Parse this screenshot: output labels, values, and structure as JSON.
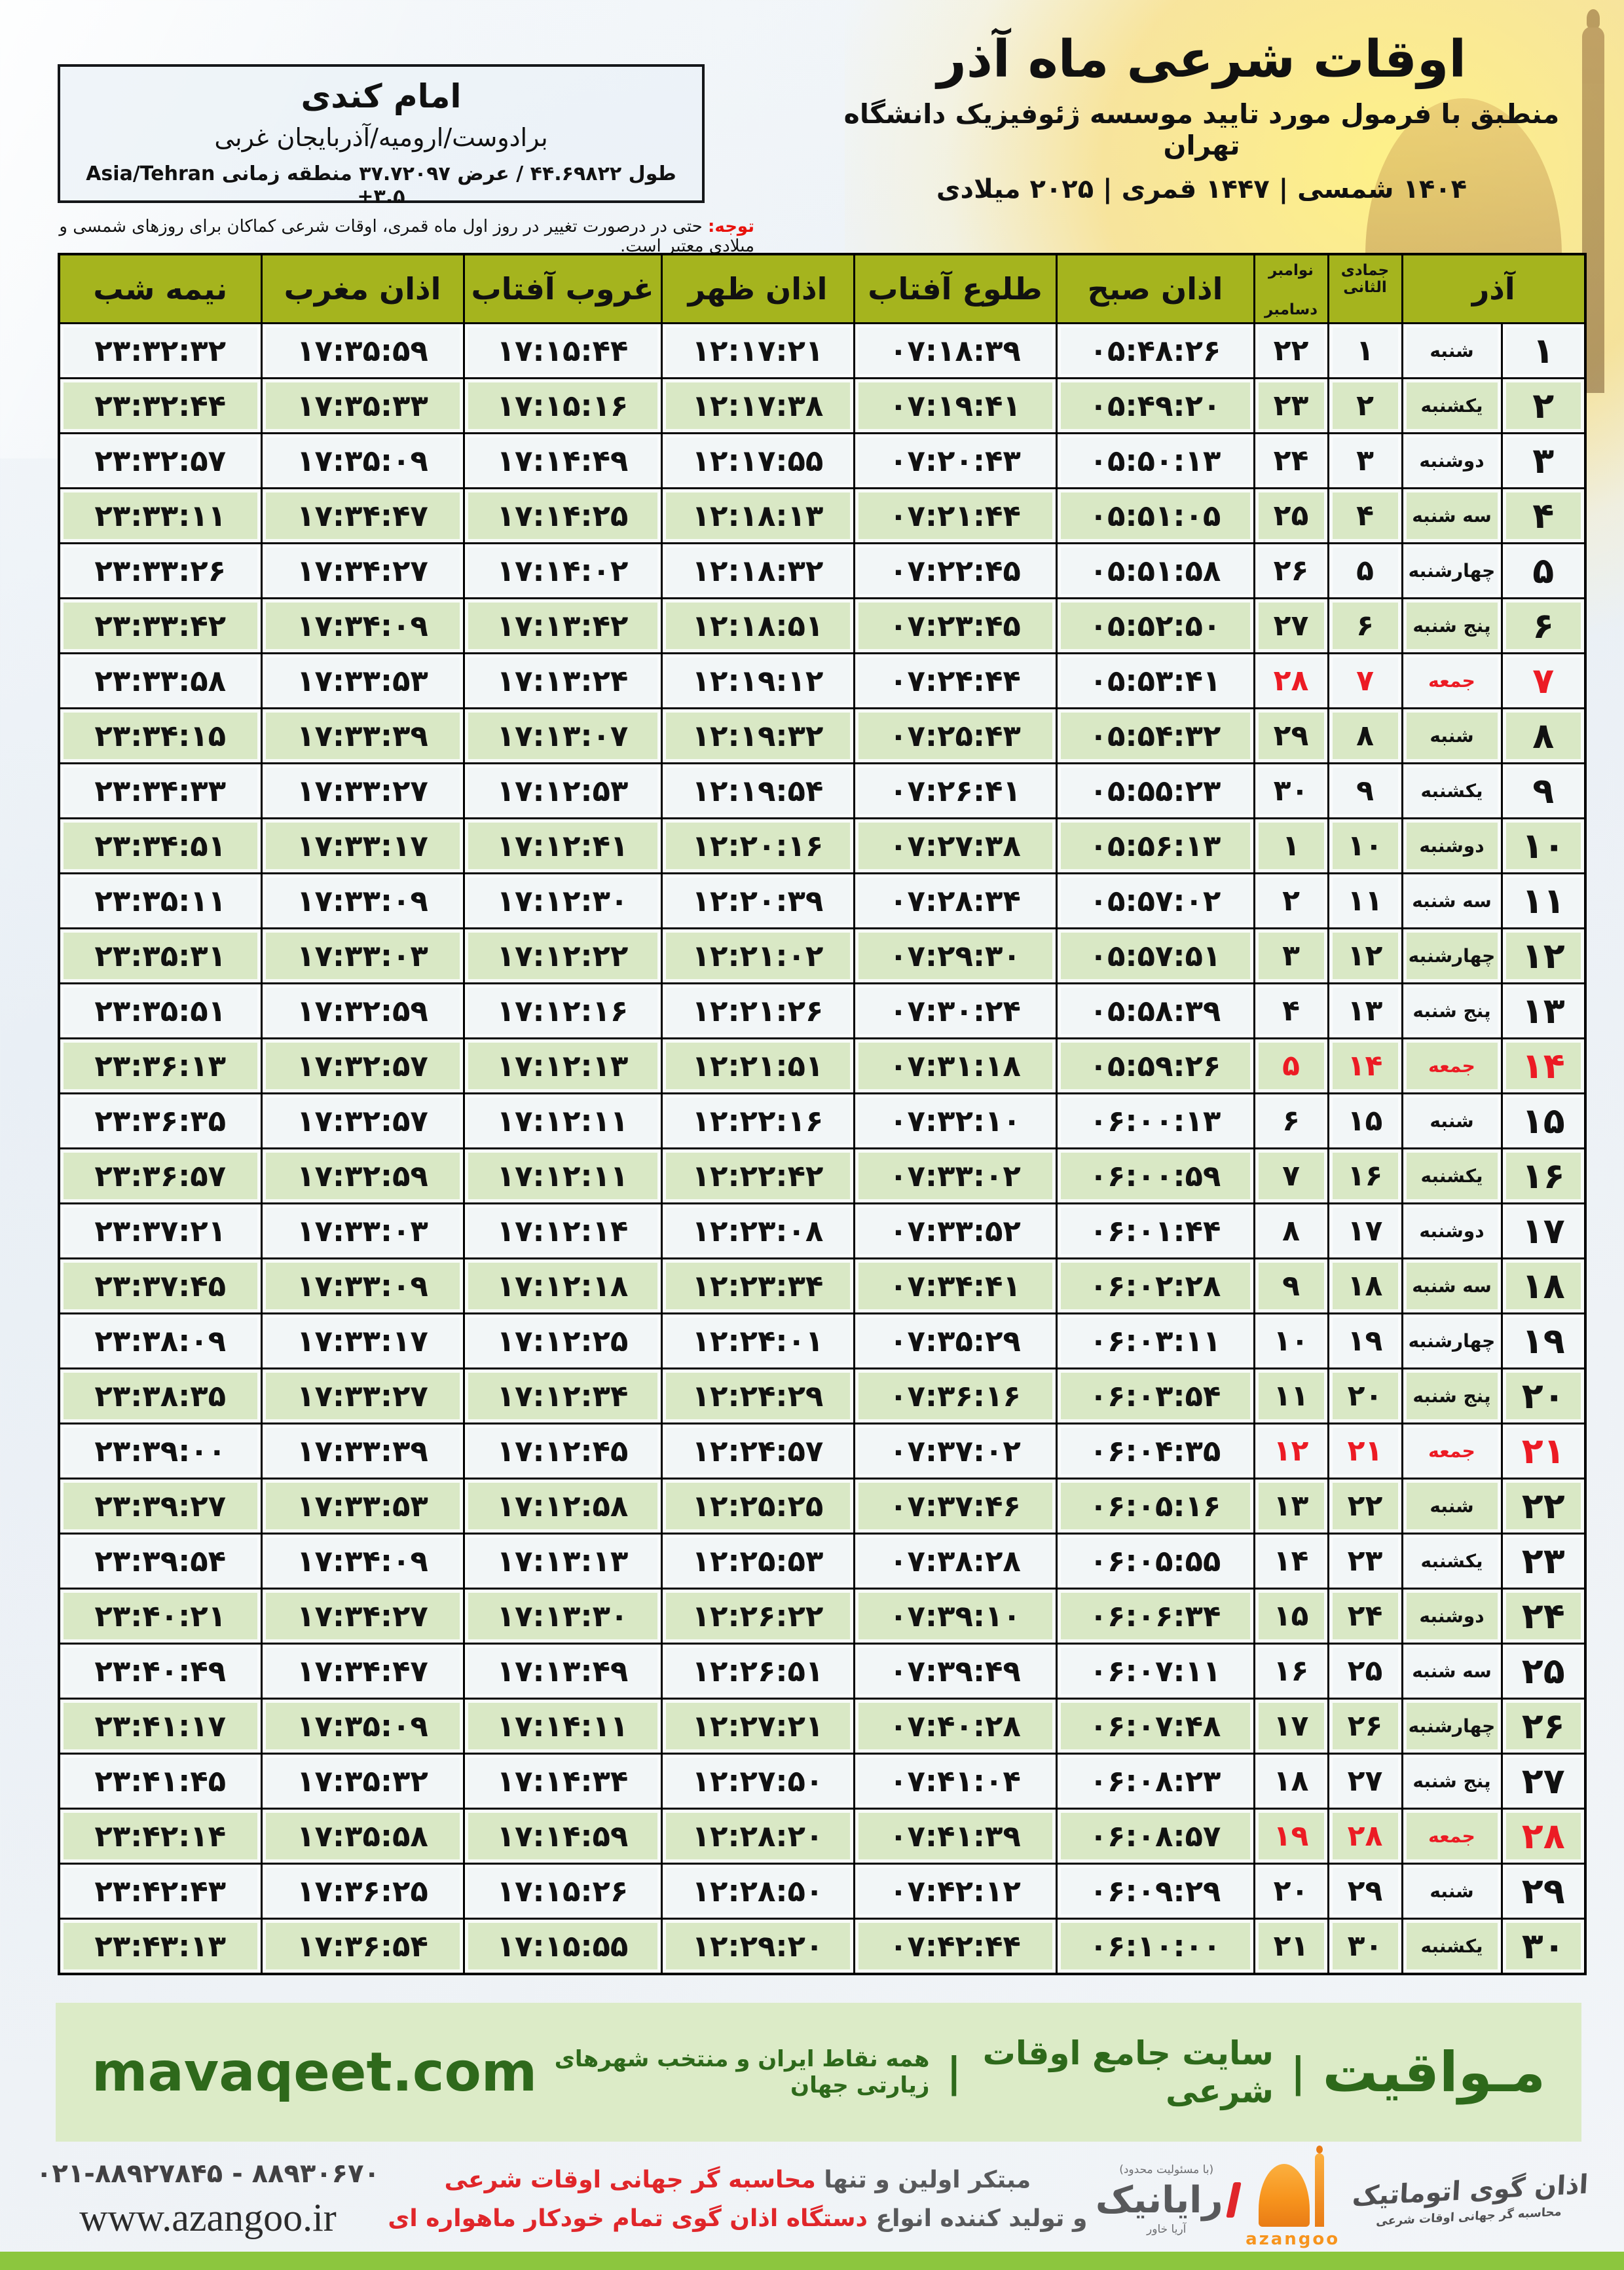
{
  "header": {
    "title": "اوقات شرعی ماه آذر",
    "subtitle": "منطبق با فرمول مورد تایید موسسه ژئوفیزیک دانشگاه تهران",
    "years": "1404 شمسی | 1447 قمری | 2025 میلادی"
  },
  "location": {
    "title": "امام کندی",
    "region": "برادوست/ارومیه/آذربایجان غربی",
    "coordinates": "طول 44.69822 / عرض 37.72097 منطقه زمانی",
    "timezone": "Asia/Tehran +3.5"
  },
  "notice": {
    "label": "توجه:",
    "text": "حتی در درصورت تغییر در روز اول ماه قمری، اوقات شرعی کماکان برای روزهای شمسی و میلادی معتبر است."
  },
  "table": {
    "col_headers": {
      "azar": "آذر",
      "jumada": "جمادی الثانی",
      "november": "نوامبر",
      "december": "دسامبر",
      "fajr": "اذان صبح",
      "sunrise": "طلوع آفتاب",
      "dhuhr": "اذان ظهر",
      "sunset": "غروب آفتاب",
      "maghrib": "اذان مغرب",
      "midnight": "نیمه شب"
    },
    "rows": [
      {
        "day": 1,
        "weekday": "شنبه",
        "jumada": 1,
        "greg": 22,
        "fajr": "05:48:26",
        "sunrise": "07:18:39",
        "dhuhr": "12:17:21",
        "sunset": "17:15:44",
        "maghrib": "17:35:59",
        "midnight": "23:32:32",
        "friday": false
      },
      {
        "day": 2,
        "weekday": "یکشنبه",
        "jumada": 2,
        "greg": 23,
        "fajr": "05:49:20",
        "sunrise": "07:19:41",
        "dhuhr": "12:17:38",
        "sunset": "17:15:16",
        "maghrib": "17:35:33",
        "midnight": "23:32:44",
        "friday": false
      },
      {
        "day": 3,
        "weekday": "دوشنبه",
        "jumada": 3,
        "greg": 24,
        "fajr": "05:50:13",
        "sunrise": "07:20:43",
        "dhuhr": "12:17:55",
        "sunset": "17:14:49",
        "maghrib": "17:35:09",
        "midnight": "23:32:57",
        "friday": false
      },
      {
        "day": 4,
        "weekday": "سه شنبه",
        "jumada": 4,
        "greg": 25,
        "fajr": "05:51:05",
        "sunrise": "07:21:44",
        "dhuhr": "12:18:13",
        "sunset": "17:14:25",
        "maghrib": "17:34:47",
        "midnight": "23:33:11",
        "friday": false
      },
      {
        "day": 5,
        "weekday": "چهارشنبه",
        "jumada": 5,
        "greg": 26,
        "fajr": "05:51:58",
        "sunrise": "07:22:45",
        "dhuhr": "12:18:32",
        "sunset": "17:14:02",
        "maghrib": "17:34:27",
        "midnight": "23:33:26",
        "friday": false
      },
      {
        "day": 6,
        "weekday": "پنج شنبه",
        "jumada": 6,
        "greg": 27,
        "fajr": "05:52:50",
        "sunrise": "07:23:45",
        "dhuhr": "12:18:51",
        "sunset": "17:13:42",
        "maghrib": "17:34:09",
        "midnight": "23:33:42",
        "friday": false
      },
      {
        "day": 7,
        "weekday": "جمعه",
        "jumada": 7,
        "greg": 28,
        "fajr": "05:53:41",
        "sunrise": "07:24:44",
        "dhuhr": "12:19:12",
        "sunset": "17:13:24",
        "maghrib": "17:33:53",
        "midnight": "23:33:58",
        "friday": true
      },
      {
        "day": 8,
        "weekday": "شنبه",
        "jumada": 8,
        "greg": 29,
        "fajr": "05:54:32",
        "sunrise": "07:25:43",
        "dhuhr": "12:19:32",
        "sunset": "17:13:07",
        "maghrib": "17:33:39",
        "midnight": "23:34:15",
        "friday": false
      },
      {
        "day": 9,
        "weekday": "یکشنبه",
        "jumada": 9,
        "greg": 30,
        "fajr": "05:55:23",
        "sunrise": "07:26:41",
        "dhuhr": "12:19:54",
        "sunset": "17:12:53",
        "maghrib": "17:33:27",
        "midnight": "23:34:33",
        "friday": false
      },
      {
        "day": 10,
        "weekday": "دوشنبه",
        "jumada": 10,
        "greg": 1,
        "fajr": "05:56:13",
        "sunrise": "07:27:38",
        "dhuhr": "12:20:16",
        "sunset": "17:12:41",
        "maghrib": "17:33:17",
        "midnight": "23:34:51",
        "friday": false
      },
      {
        "day": 11,
        "weekday": "سه شنبه",
        "jumada": 11,
        "greg": 2,
        "fajr": "05:57:02",
        "sunrise": "07:28:34",
        "dhuhr": "12:20:39",
        "sunset": "17:12:30",
        "maghrib": "17:33:09",
        "midnight": "23:35:11",
        "friday": false
      },
      {
        "day": 12,
        "weekday": "چهارشنبه",
        "jumada": 12,
        "greg": 3,
        "fajr": "05:57:51",
        "sunrise": "07:29:30",
        "dhuhr": "12:21:02",
        "sunset": "17:12:22",
        "maghrib": "17:33:03",
        "midnight": "23:35:31",
        "friday": false
      },
      {
        "day": 13,
        "weekday": "پنج شنبه",
        "jumada": 13,
        "greg": 4,
        "fajr": "05:58:39",
        "sunrise": "07:30:24",
        "dhuhr": "12:21:26",
        "sunset": "17:12:16",
        "maghrib": "17:32:59",
        "midnight": "23:35:51",
        "friday": false
      },
      {
        "day": 14,
        "weekday": "جمعه",
        "jumada": 14,
        "greg": 5,
        "fajr": "05:59:26",
        "sunrise": "07:31:18",
        "dhuhr": "12:21:51",
        "sunset": "17:12:13",
        "maghrib": "17:32:57",
        "midnight": "23:36:13",
        "friday": true
      },
      {
        "day": 15,
        "weekday": "شنبه",
        "jumada": 15,
        "greg": 6,
        "fajr": "06:00:13",
        "sunrise": "07:32:10",
        "dhuhr": "12:22:16",
        "sunset": "17:12:11",
        "maghrib": "17:32:57",
        "midnight": "23:36:35",
        "friday": false
      },
      {
        "day": 16,
        "weekday": "یکشنبه",
        "jumada": 16,
        "greg": 7,
        "fajr": "06:00:59",
        "sunrise": "07:33:02",
        "dhuhr": "12:22:42",
        "sunset": "17:12:11",
        "maghrib": "17:32:59",
        "midnight": "23:36:57",
        "friday": false
      },
      {
        "day": 17,
        "weekday": "دوشنبه",
        "jumada": 17,
        "greg": 8,
        "fajr": "06:01:44",
        "sunrise": "07:33:52",
        "dhuhr": "12:23:08",
        "sunset": "17:12:14",
        "maghrib": "17:33:03",
        "midnight": "23:37:21",
        "friday": false
      },
      {
        "day": 18,
        "weekday": "سه شنبه",
        "jumada": 18,
        "greg": 9,
        "fajr": "06:02:28",
        "sunrise": "07:34:41",
        "dhuhr": "12:23:34",
        "sunset": "17:12:18",
        "maghrib": "17:33:09",
        "midnight": "23:37:45",
        "friday": false
      },
      {
        "day": 19,
        "weekday": "چهارشنبه",
        "jumada": 19,
        "greg": 10,
        "fajr": "06:03:11",
        "sunrise": "07:35:29",
        "dhuhr": "12:24:01",
        "sunset": "17:12:25",
        "maghrib": "17:33:17",
        "midnight": "23:38:09",
        "friday": false
      },
      {
        "day": 20,
        "weekday": "پنج شنبه",
        "jumada": 20,
        "greg": 11,
        "fajr": "06:03:54",
        "sunrise": "07:36:16",
        "dhuhr": "12:24:29",
        "sunset": "17:12:34",
        "maghrib": "17:33:27",
        "midnight": "23:38:35",
        "friday": false
      },
      {
        "day": 21,
        "weekday": "جمعه",
        "jumada": 21,
        "greg": 12,
        "fajr": "06:04:35",
        "sunrise": "07:37:02",
        "dhuhr": "12:24:57",
        "sunset": "17:12:45",
        "maghrib": "17:33:39",
        "midnight": "23:39:00",
        "friday": true
      },
      {
        "day": 22,
        "weekday": "شنبه",
        "jumada": 22,
        "greg": 13,
        "fajr": "06:05:16",
        "sunrise": "07:37:46",
        "dhuhr": "12:25:25",
        "sunset": "17:12:58",
        "maghrib": "17:33:53",
        "midnight": "23:39:27",
        "friday": false
      },
      {
        "day": 23,
        "weekday": "یکشنبه",
        "jumada": 23,
        "greg": 14,
        "fajr": "06:05:55",
        "sunrise": "07:38:28",
        "dhuhr": "12:25:53",
        "sunset": "17:13:13",
        "maghrib": "17:34:09",
        "midnight": "23:39:54",
        "friday": false
      },
      {
        "day": 24,
        "weekday": "دوشنبه",
        "jumada": 24,
        "greg": 15,
        "fajr": "06:06:34",
        "sunrise": "07:39:10",
        "dhuhr": "12:26:22",
        "sunset": "17:13:30",
        "maghrib": "17:34:27",
        "midnight": "23:40:21",
        "friday": false
      },
      {
        "day": 25,
        "weekday": "سه شنبه",
        "jumada": 25,
        "greg": 16,
        "fajr": "06:07:11",
        "sunrise": "07:39:49",
        "dhuhr": "12:26:51",
        "sunset": "17:13:49",
        "maghrib": "17:34:47",
        "midnight": "23:40:49",
        "friday": false
      },
      {
        "day": 26,
        "weekday": "چهارشنبه",
        "jumada": 26,
        "greg": 17,
        "fajr": "06:07:48",
        "sunrise": "07:40:28",
        "dhuhr": "12:27:21",
        "sunset": "17:14:11",
        "maghrib": "17:35:09",
        "midnight": "23:41:17",
        "friday": false
      },
      {
        "day": 27,
        "weekday": "پنج شنبه",
        "jumada": 27,
        "greg": 18,
        "fajr": "06:08:23",
        "sunrise": "07:41:04",
        "dhuhr": "12:27:50",
        "sunset": "17:14:34",
        "maghrib": "17:35:32",
        "midnight": "23:41:45",
        "friday": false
      },
      {
        "day": 28,
        "weekday": "جمعه",
        "jumada": 28,
        "greg": 19,
        "fajr": "06:08:57",
        "sunrise": "07:41:39",
        "dhuhr": "12:28:20",
        "sunset": "17:14:59",
        "maghrib": "17:35:58",
        "midnight": "23:42:14",
        "friday": true
      },
      {
        "day": 29,
        "weekday": "شنبه",
        "jumada": 29,
        "greg": 20,
        "fajr": "06:09:29",
        "sunrise": "07:42:12",
        "dhuhr": "12:28:50",
        "sunset": "17:15:26",
        "maghrib": "17:36:25",
        "midnight": "23:42:43",
        "friday": false
      },
      {
        "day": 30,
        "weekday": "یکشنبه",
        "jumada": 30,
        "greg": 21,
        "fajr": "06:10:00",
        "sunrise": "07:42:44",
        "dhuhr": "12:29:20",
        "sunset": "17:15:55",
        "maghrib": "17:36:54",
        "midnight": "23:43:13",
        "friday": false
      }
    ]
  },
  "site_bar": {
    "brand": "مـواقیت",
    "pipe": "|",
    "site_label": "سایت جامع اوقات شرعی",
    "coverage": "همه نقاط ایران و منتخب شهرهای زیارتی جهان",
    "domain": "mavaqeet.com"
  },
  "footer": {
    "phones": "021-88927845 - 88930670",
    "website": "www.azangoo.ir",
    "slogan_line1_gray": "مبتکر اولین و تنها",
    "slogan_line1_red": "محاسبه گر جهانی اوقات شرعی",
    "slogan_line2_gray": "و تولید کننده انواع",
    "slogan_line2_red": "دستگاه اذان گوی تمام خودکار ماهواره ای",
    "rayanik_reg": "(با مسئولیت محدود)",
    "rayanik_name": "رایانیک",
    "rayanik_sub": "آریا خاور",
    "azangoo_title": "اذان گوی اتوماتیک",
    "azangoo_sub": "محاسبه گر جهانی اوقات شرعی",
    "azangoo_latin": "azangoo"
  },
  "colors": {
    "header_green": "#a5b41e",
    "row_green": "#d9e8c5",
    "friday_red": "#ec1b24",
    "bar_green": "#dcebc7",
    "strip_green": "#8cc63e",
    "dark_green_text": "#2e691b",
    "accent_orange": "#f7941d"
  }
}
